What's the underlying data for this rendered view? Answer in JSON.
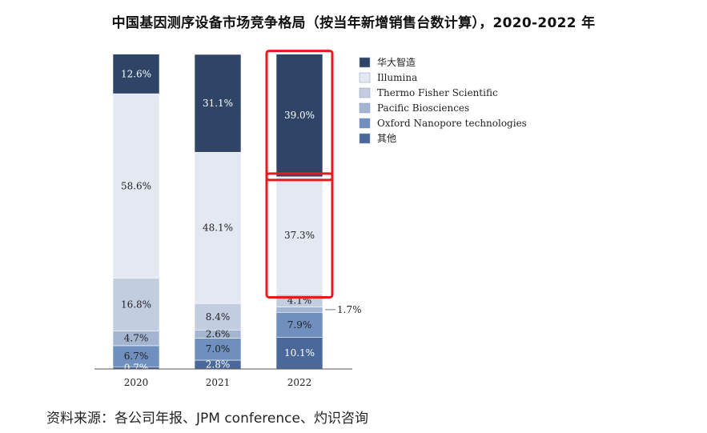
{
  "title": "中国基因测序设备市场竞争格局（按当年新增销售台数计算），2020-2022 年",
  "source": "资料来源：各公司年报、JPM conference、灼识咨询",
  "chart_data": {
    "type": "bar",
    "stacked": true,
    "categories": [
      "2020",
      "2021",
      "2022"
    ],
    "ylim": [
      0,
      100
    ],
    "unit": "%",
    "legend_position": "right",
    "series": [
      {
        "name": "其他",
        "color": "#4a6899",
        "values": [
          0.7,
          2.8,
          10.1
        ],
        "labels": [
          "0.7%",
          "2.8%",
          "10.1%"
        ]
      },
      {
        "name": "Oxford Nanopore technologies",
        "color": "#6f8fbf",
        "values": [
          6.7,
          7.0,
          7.9
        ],
        "labels": [
          "6.7%",
          "7.0%",
          "7.9%"
        ]
      },
      {
        "name": "Pacific Biosciences",
        "color": "#a4b5d2",
        "values": [
          4.7,
          2.6,
          1.7
        ],
        "labels": [
          "4.7%",
          "2.6%",
          "1.7%"
        ]
      },
      {
        "name": "Thermo Fisher Scientific",
        "color": "#c3cde0",
        "values": [
          16.8,
          8.4,
          4.1
        ],
        "labels": [
          "16.8%",
          "8.4%",
          "4.1%"
        ]
      },
      {
        "name": "Illumina",
        "color": "#e3e8f3",
        "values": [
          58.6,
          48.1,
          37.3
        ],
        "labels": [
          "58.6%",
          "48.1%",
          "37.3%"
        ]
      },
      {
        "name": "华大智造",
        "color": "#2f4567",
        "values": [
          12.6,
          31.1,
          39.0
        ],
        "labels": [
          "12.6%",
          "31.1%",
          "39.0%"
        ]
      }
    ],
    "legend_order": [
      "华大智造",
      "Illumina",
      "Thermo Fisher Scientific",
      "Pacific Biosciences",
      "Oxford Nanopore technologies",
      "其他"
    ],
    "highlight_color": "#e8191c",
    "highlights": [
      {
        "category": "2022",
        "series": "华大智造"
      },
      {
        "category": "2022",
        "series": "Illumina"
      }
    ]
  }
}
